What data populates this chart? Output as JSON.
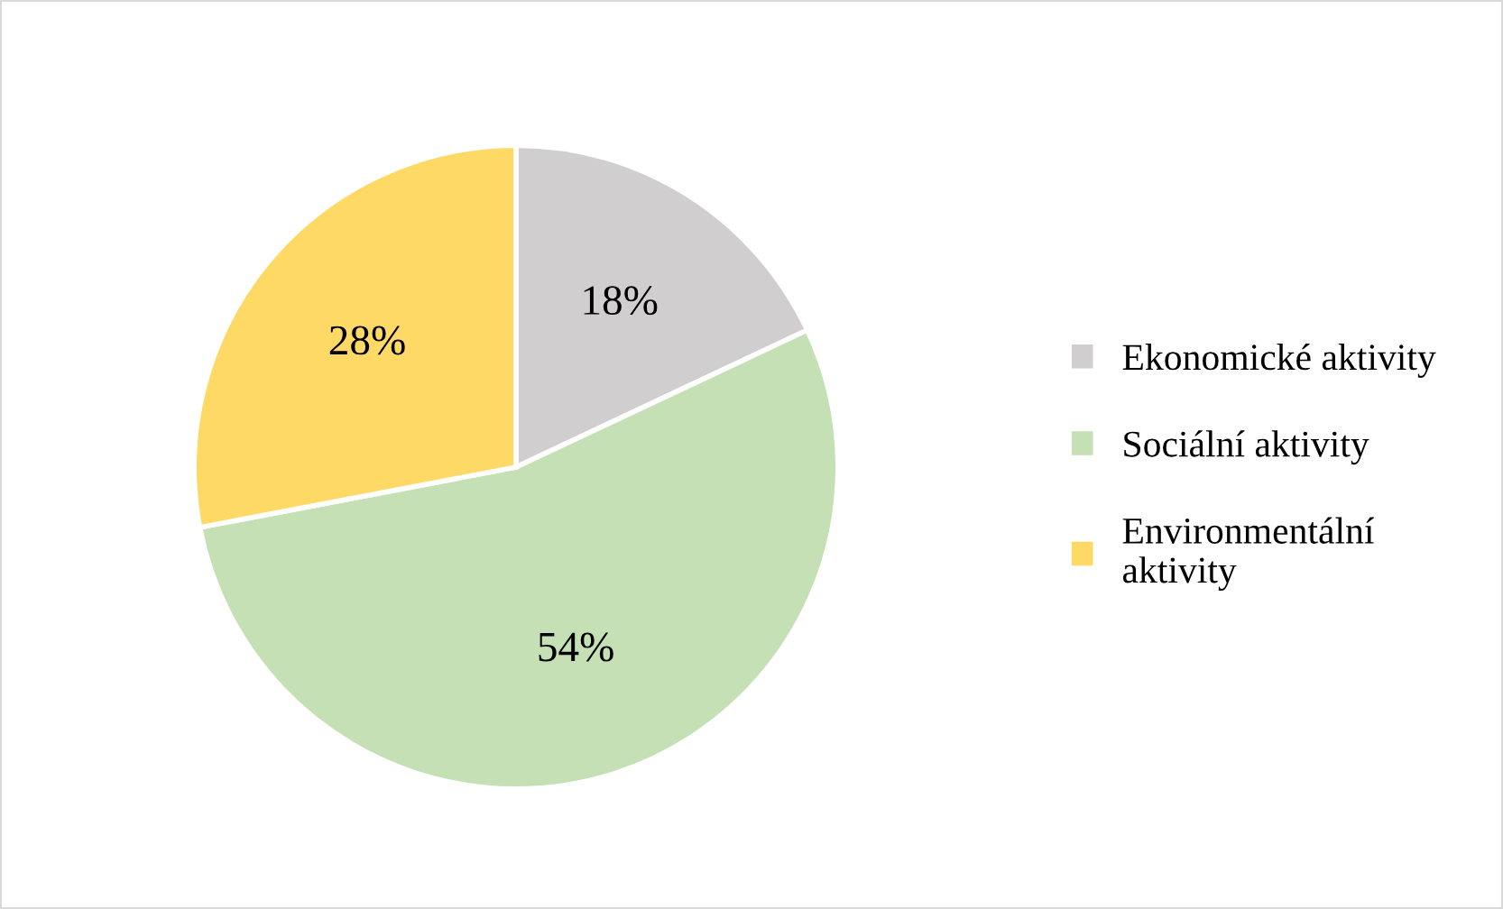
{
  "chart_data": {
    "type": "pie",
    "categories": [
      "Ekonomické aktivity",
      "Sociální aktivity",
      "Environmentální aktivity"
    ],
    "values": [
      18,
      54,
      28
    ],
    "colors": [
      "#d0cece",
      "#c5e0b4",
      "#ffd966"
    ],
    "value_labels": [
      "18%",
      "54%",
      "28%"
    ],
    "legend": "right"
  }
}
